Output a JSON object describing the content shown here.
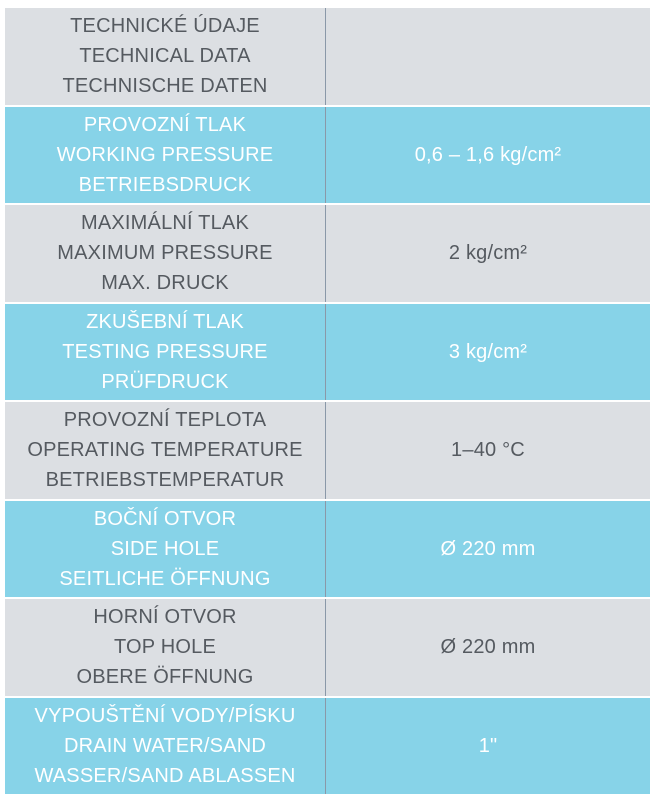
{
  "rows": [
    {
      "labels": [
        "TECHNICKÉ ÚDAJE",
        "TECHNICAL DATA",
        "TECHNISCHE DATEN"
      ],
      "value": "",
      "style": "gray"
    },
    {
      "labels": [
        "PROVOZNÍ TLAK",
        "WORKING PRESSURE",
        "BETRIEBSDRUCK"
      ],
      "value": "0,6 – 1,6 kg/cm²",
      "style": "blue"
    },
    {
      "labels": [
        "MAXIMÁLNÍ TLAK",
        "MAXIMUM PRESSURE",
        "MAX. DRUCK"
      ],
      "value": "2 kg/cm²",
      "style": "gray"
    },
    {
      "labels": [
        "ZKUŠEBNÍ TLAK",
        "TESTING PRESSURE",
        "PRÜFDRUCK"
      ],
      "value": "3 kg/cm²",
      "style": "blue"
    },
    {
      "labels": [
        "PROVOZNÍ TEPLOTA",
        "OPERATING TEMPERATURE",
        "BETRIEBSTEMPERATUR"
      ],
      "value": "1–40 °C",
      "style": "gray"
    },
    {
      "labels": [
        "BOČNÍ OTVOR",
        "SIDE HOLE",
        "SEITLICHE ÖFFNUNG"
      ],
      "value": "Ø 220 mm",
      "style": "blue"
    },
    {
      "labels": [
        "HORNÍ OTVOR",
        "TOP HOLE",
        "OBERE ÖFFNUNG"
      ],
      "value": "Ø 220 mm",
      "style": "gray"
    },
    {
      "labels": [
        "VYPOUŠTĚNÍ VODY/PÍSKU",
        "DRAIN WATER/SAND",
        "WASSER/SAND ABLASSEN"
      ],
      "value": "1\"",
      "style": "blue"
    }
  ],
  "colors": {
    "gray_row": "#dcdfe3",
    "blue_row": "#87d3e8",
    "gray_text": "#555a60",
    "blue_text": "#ffffff"
  }
}
